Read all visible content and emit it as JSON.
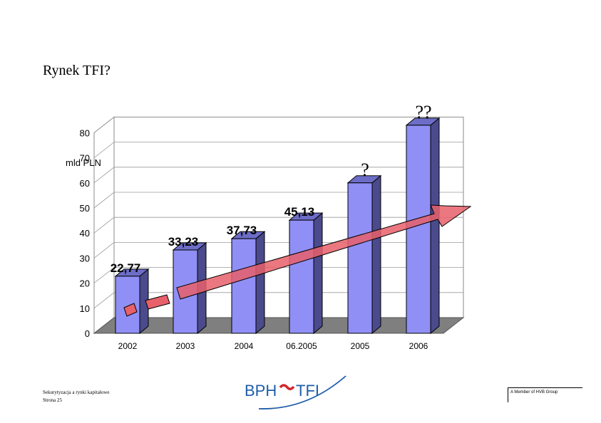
{
  "slide": {
    "title": "Rynek TFI?"
  },
  "chart_data": {
    "type": "bar",
    "ylabel": "mld PLN",
    "ylim": [
      0,
      80
    ],
    "yticks": [
      0,
      10,
      20,
      30,
      40,
      50,
      60,
      70,
      80
    ],
    "categories": [
      "2002",
      "2003",
      "2004",
      "06.2005",
      "2005",
      "2006"
    ],
    "values": [
      22.77,
      33.23,
      37.73,
      45.13,
      60,
      83
    ],
    "data_labels": [
      "22,77",
      "33,23",
      "37,73",
      "45,13",
      "?",
      "??"
    ],
    "bar_color": "#8f8ff5",
    "bar_side_color": "#4a4a8c",
    "floor_color": "#7f7f7f",
    "arrow_color": "#e8606a"
  },
  "footer": {
    "line1": "Sekurytyzacja a rynki kapitałowe",
    "line2": "Strona 25",
    "logo_text_left": "BPH",
    "logo_text_right": "TFI",
    "member_text": "A Member of HVB Group",
    "logo_color": "#1f5ea8",
    "logo_accent": "#d0282e"
  }
}
